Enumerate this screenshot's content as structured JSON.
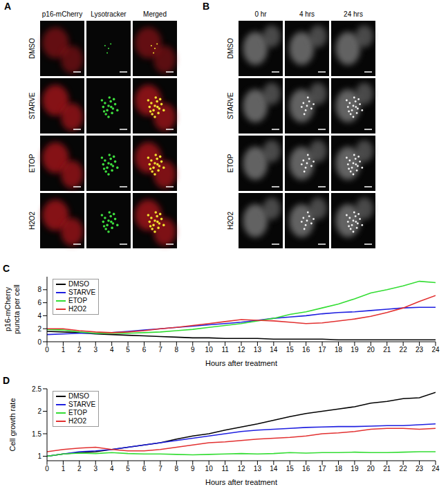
{
  "image_panels": [
    {
      "label": "A",
      "columns": [
        "p16-mCherry",
        "Lysotracker",
        "Merged"
      ],
      "rows": [
        "DMSO",
        "STARVE",
        "ETOP",
        "H2O2"
      ]
    },
    {
      "label": "B",
      "columns": [
        "0 hr",
        "4 hrs",
        "24 hrs"
      ],
      "rows": [
        "DMSO",
        "STARVE",
        "ETOP",
        "H2O2"
      ]
    }
  ],
  "chart_data": [
    {
      "label": "C",
      "type": "line",
      "y_label": "p16-mCherry puncta per cell",
      "x_label": "Hours after treatment",
      "x": [
        0,
        1,
        2,
        3,
        4,
        5,
        6,
        7,
        8,
        9,
        10,
        11,
        12,
        13,
        14,
        15,
        16,
        17,
        18,
        19,
        20,
        21,
        22,
        23,
        24
      ],
      "xlim": [
        0,
        24
      ],
      "xticks": [
        0,
        1,
        2,
        3,
        4,
        5,
        6,
        7,
        8,
        9,
        10,
        11,
        12,
        13,
        14,
        15,
        16,
        17,
        18,
        19,
        20,
        21,
        22,
        23,
        24
      ],
      "ylim": [
        0,
        10
      ],
      "yticks": [
        0,
        2,
        4,
        6,
        8
      ],
      "grid": false,
      "legend": "upper left",
      "line_style": "solid",
      "marker": "none",
      "series": [
        {
          "name": "DMSO",
          "color": "#000000",
          "values": [
            1.6,
            1.5,
            1.4,
            1.2,
            1.1,
            1.0,
            0.9,
            0.8,
            0.7,
            0.6,
            0.6,
            0.5,
            0.5,
            0.5,
            0.4,
            0.4,
            0.4,
            0.4,
            0.3,
            0.3,
            0.3,
            0.3,
            0.3,
            0.3,
            0.3
          ]
        },
        {
          "name": "STARVE",
          "color": "#1f1fe0",
          "values": [
            1.1,
            1.2,
            1.3,
            1.3,
            1.4,
            1.6,
            1.8,
            2.0,
            2.2,
            2.4,
            2.6,
            2.8,
            3.0,
            3.3,
            3.6,
            3.8,
            4.0,
            4.3,
            4.5,
            4.6,
            4.8,
            5.0,
            5.2,
            5.3,
            5.3
          ]
        },
        {
          "name": "ETOP",
          "color": "#33dd33",
          "values": [
            1.9,
            1.8,
            1.5,
            1.3,
            1.3,
            1.3,
            1.4,
            1.5,
            1.7,
            1.9,
            2.2,
            2.5,
            2.8,
            3.2,
            3.6,
            4.2,
            4.6,
            5.2,
            5.8,
            6.6,
            7.5,
            8.0,
            8.6,
            9.3,
            9.1
          ]
        },
        {
          "name": "H2O2",
          "color": "#e23030",
          "values": [
            2.0,
            2.0,
            1.7,
            1.5,
            1.4,
            1.5,
            1.7,
            2.0,
            2.2,
            2.5,
            2.8,
            3.1,
            3.4,
            3.3,
            3.2,
            3.0,
            2.8,
            2.9,
            3.2,
            3.5,
            3.9,
            4.5,
            5.2,
            6.2,
            7.1
          ]
        }
      ]
    },
    {
      "label": "D",
      "type": "line",
      "y_label": "Cell growth rate",
      "x_label": "Hours after treatment",
      "x": [
        0,
        1,
        2,
        3,
        4,
        5,
        6,
        7,
        8,
        9,
        10,
        11,
        12,
        13,
        14,
        15,
        16,
        17,
        18,
        19,
        20,
        21,
        22,
        23,
        24
      ],
      "xlim": [
        0,
        24
      ],
      "xticks": [
        0,
        1,
        2,
        3,
        4,
        5,
        6,
        7,
        8,
        9,
        10,
        11,
        12,
        13,
        14,
        15,
        16,
        17,
        18,
        19,
        20,
        21,
        22,
        23,
        24
      ],
      "ylim": [
        0.9,
        2.5
      ],
      "yticks": [
        1,
        1.5,
        2,
        2.5
      ],
      "grid": false,
      "legend": "upper left",
      "line_style": "solid",
      "marker": "none",
      "series": [
        {
          "name": "DMSO",
          "color": "#000000",
          "values": [
            1.0,
            1.05,
            1.08,
            1.1,
            1.15,
            1.2,
            1.25,
            1.3,
            1.38,
            1.45,
            1.5,
            1.58,
            1.65,
            1.72,
            1.8,
            1.88,
            1.95,
            2.0,
            2.05,
            2.1,
            2.18,
            2.22,
            2.28,
            2.3,
            2.42
          ]
        },
        {
          "name": "STARVE",
          "color": "#1f1fe0",
          "values": [
            1.0,
            1.05,
            1.1,
            1.12,
            1.15,
            1.2,
            1.25,
            1.3,
            1.35,
            1.4,
            1.45,
            1.5,
            1.55,
            1.58,
            1.6,
            1.62,
            1.64,
            1.65,
            1.66,
            1.66,
            1.67,
            1.68,
            1.68,
            1.7,
            1.72
          ]
        },
        {
          "name": "ETOP",
          "color": "#33dd33",
          "values": [
            1.0,
            1.05,
            1.07,
            1.06,
            1.08,
            1.06,
            1.05,
            1.05,
            1.04,
            1.03,
            1.04,
            1.05,
            1.06,
            1.05,
            1.06,
            1.08,
            1.07,
            1.08,
            1.08,
            1.09,
            1.08,
            1.08,
            1.09,
            1.1,
            1.1
          ]
        },
        {
          "name": "H2O2",
          "color": "#e23030",
          "values": [
            1.1,
            1.15,
            1.18,
            1.2,
            1.15,
            1.12,
            1.12,
            1.15,
            1.2,
            1.25,
            1.3,
            1.32,
            1.35,
            1.38,
            1.4,
            1.42,
            1.45,
            1.5,
            1.52,
            1.55,
            1.6,
            1.62,
            1.62,
            1.6,
            1.62
          ]
        }
      ]
    }
  ]
}
